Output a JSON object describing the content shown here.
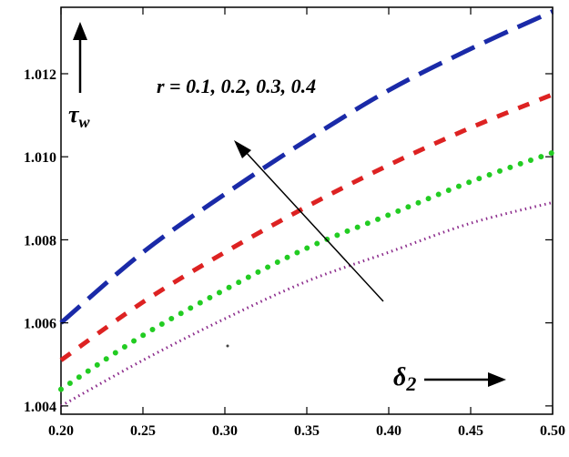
{
  "chart_data": {
    "type": "line",
    "title": "",
    "xlabel": "δ2",
    "ylabel": "τw",
    "xlabel_main": "δ",
    "xlabel_sub": "2",
    "ylabel_main": "τ",
    "ylabel_sub": "w",
    "xlim": [
      0.2,
      0.5
    ],
    "ylim": [
      1.0038,
      1.0136
    ],
    "x_ticks": [
      0.2,
      0.25,
      0.3,
      0.35,
      0.4,
      0.45,
      0.5
    ],
    "x_tick_labels": [
      "0.20",
      "0.25",
      "0.30",
      "0.35",
      "0.40",
      "0.45",
      "0.50"
    ],
    "y_ticks": [
      1.004,
      1.006,
      1.008,
      1.01,
      1.012
    ],
    "y_tick_labels": [
      "1.004",
      "1.006",
      "1.008",
      "1.010",
      "1.012"
    ],
    "grid": false,
    "legend": "none",
    "annotation": "r = 0.1, 0.2, 0.3, 0.4",
    "x": [
      0.2,
      0.25,
      0.3,
      0.35,
      0.4,
      0.45,
      0.5
    ],
    "series": [
      {
        "values": [
          1.004,
          1.0051,
          1.0061,
          1.007,
          1.0077,
          1.0084,
          1.0089
        ],
        "color": "#8b2a8b",
        "style": "dotted"
      },
      {
        "values": [
          1.0044,
          1.0057,
          1.0068,
          1.0078,
          1.0086,
          1.0094,
          1.0101
        ],
        "color": "#22cc22",
        "style": "dotted-bold"
      },
      {
        "values": [
          1.0051,
          1.0065,
          1.0077,
          1.0088,
          1.0098,
          1.0107,
          1.0115
        ],
        "color": "#dd2222",
        "style": "dashed"
      },
      {
        "values": [
          1.006,
          1.0077,
          1.0091,
          1.0104,
          1.0116,
          1.0126,
          1.0135
        ],
        "color": "#1a2aa8",
        "style": "long-dash"
      }
    ]
  }
}
